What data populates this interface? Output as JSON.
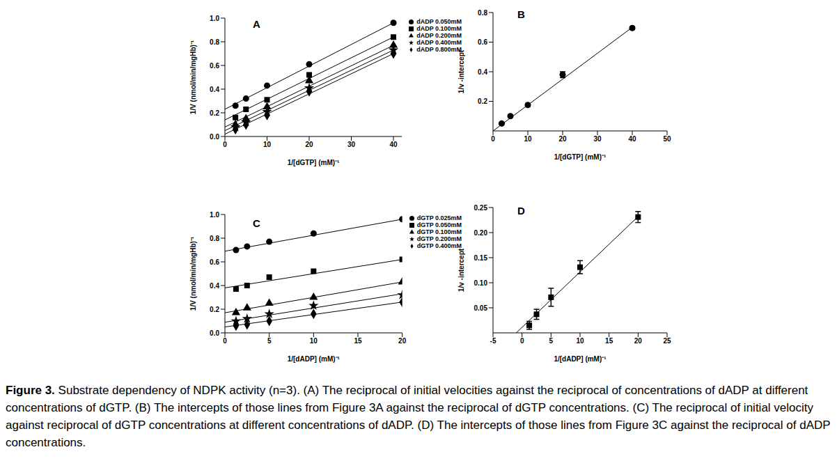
{
  "chart_data": [
    {
      "type": "scatter",
      "title": "A",
      "x_label": "1/[dGTP]  (mM)⁻¹",
      "y_label": "1/V  (nmol/min/mgHb)⁻¹",
      "x": [
        2.5,
        5,
        10,
        20,
        40
      ],
      "fit_x": [
        0,
        40
      ],
      "series": [
        {
          "name": "dADP 0.050mM",
          "marker": "circle",
          "color": "#000000",
          "values": [
            0.26,
            0.32,
            0.43,
            0.61,
            0.96
          ],
          "fit": [
            0.23,
            0.96
          ]
        },
        {
          "name": "dADP 0.100mM",
          "marker": "square",
          "color": "#000000",
          "values": [
            0.16,
            0.23,
            0.31,
            0.52,
            0.84
          ],
          "fit": [
            0.14,
            0.84
          ]
        },
        {
          "name": "dADP 0.200mM",
          "marker": "triangle",
          "color": "#000000",
          "values": [
            0.1,
            0.15,
            0.25,
            0.47,
            0.77
          ],
          "fit": [
            0.08,
            0.77
          ]
        },
        {
          "name": "dADP 0.400mM",
          "marker": "star",
          "color": "#000000",
          "values": [
            0.08,
            0.12,
            0.21,
            0.41,
            0.73
          ],
          "fit": [
            0.05,
            0.73
          ]
        },
        {
          "name": "dADP 0.800mM",
          "marker": "diamond",
          "color": "#000000",
          "values": [
            0.06,
            0.1,
            0.18,
            0.38,
            0.7
          ],
          "fit": [
            0.02,
            0.7
          ]
        }
      ],
      "xlim": [
        0,
        42
      ],
      "xticks": [
        0,
        10,
        20,
        30,
        40
      ],
      "ylim": [
        0,
        1
      ],
      "yticks": [
        {
          "value": 0,
          "label": "0.0"
        },
        0.2,
        0.4,
        0.6,
        0.8,
        {
          "value": 1,
          "label": "1.0"
        }
      ],
      "legend": "right"
    },
    {
      "type": "scatter",
      "title": "B",
      "x_label": "1/[dGTP]  (mM)⁻¹",
      "y_label": "1/v -intercept",
      "x": [
        2.5,
        5,
        10,
        20,
        40
      ],
      "values": [
        0.05,
        0.1,
        0.175,
        0.38,
        0.695
      ],
      "errors": [
        0.005,
        0.008,
        0.01,
        0.02,
        0.01
      ],
      "marker": "circle",
      "color": "#000000",
      "fit_x": [
        0,
        40
      ],
      "fit": [
        0,
        0.7
      ],
      "xlim": [
        0,
        50
      ],
      "xticks": [
        0,
        10,
        20,
        30,
        40,
        50
      ],
      "ylim": [
        0,
        0.8
      ],
      "yticks": [
        0.2,
        0.4,
        0.6,
        0.8
      ]
    },
    {
      "type": "scatter",
      "title": "C",
      "x_label": "1/[dADP]  (mM)⁻¹",
      "y_label": "1/V  (nmol/min/mgHb)⁻¹",
      "x": [
        1.25,
        2.5,
        5,
        10,
        20
      ],
      "fit_x": [
        0,
        20
      ],
      "series": [
        {
          "name": "dGTP 0.025mM",
          "marker": "circle",
          "color": "#000000",
          "values": [
            0.7,
            0.73,
            0.77,
            0.84,
            0.96
          ],
          "fit": [
            0.69,
            0.96
          ]
        },
        {
          "name": "dGTP 0.050mM",
          "marker": "square",
          "color": "#000000",
          "values": [
            0.37,
            0.4,
            0.47,
            0.52,
            0.62
          ],
          "fit": [
            0.38,
            0.62
          ]
        },
        {
          "name": "dGTP 0.100mM",
          "marker": "triangle",
          "color": "#000000",
          "values": [
            0.17,
            0.21,
            0.25,
            0.3,
            0.43
          ],
          "fit": [
            0.17,
            0.43
          ]
        },
        {
          "name": "dGTP 0.200mM",
          "marker": "star",
          "color": "#000000",
          "values": [
            0.1,
            0.12,
            0.16,
            0.23,
            0.32
          ],
          "fit": [
            0.09,
            0.33
          ]
        },
        {
          "name": "dGTP 0.400mM",
          "marker": "diamond",
          "color": "#000000",
          "values": [
            0.06,
            0.07,
            0.1,
            0.16,
            0.26
          ],
          "fit": [
            0.05,
            0.26
          ]
        }
      ],
      "xlim": [
        0,
        20
      ],
      "xticks": [
        0,
        5,
        10,
        15,
        20
      ],
      "ylim": [
        0,
        1
      ],
      "yticks": [
        {
          "value": 0,
          "label": "0.0"
        },
        0.2,
        0.4,
        0.6,
        0.8,
        {
          "value": 1,
          "label": "1.0"
        }
      ],
      "legend": "right"
    },
    {
      "type": "scatter",
      "title": "D",
      "x_label": "1/[dADP]  (mM)⁻¹",
      "y_label": "1/v -intercept",
      "x": [
        1.25,
        2.5,
        5,
        10,
        20
      ],
      "values": [
        0.015,
        0.037,
        0.071,
        0.131,
        0.231
      ],
      "errors": [
        0.008,
        0.01,
        0.018,
        0.013,
        0.011
      ],
      "marker": "square",
      "color": "#000000",
      "fit_x": [
        -1,
        20
      ],
      "fit": [
        0,
        0.232
      ],
      "xlim": [
        -5,
        25
      ],
      "xticks": [
        -5,
        0,
        5,
        10,
        15,
        20,
        25
      ],
      "ylim": [
        0,
        0.25
      ],
      "yticks": [
        0.05,
        {
          "value": 0.1,
          "label": "0.10"
        },
        0.15,
        {
          "value": 0.2,
          "label": "0.20"
        },
        0.25
      ]
    }
  ],
  "caption": {
    "label": "Figure 3.",
    "text": "Substrate dependency of NDPK activity (n=3). (A) The reciprocal of initial velocities against the reciprocal of concentrations of dADP at different concentrations of dGTP. (B) The intercepts of those lines from Figure 3A against the reciprocal of dGTP concentrations. (C) The reciprocal of initial velocity against reciprocal of dGTP concentrations at different concentrations of dADP. (D) The intercepts of those lines from Figure 3C against the reciprocal of dADP concentrations."
  }
}
